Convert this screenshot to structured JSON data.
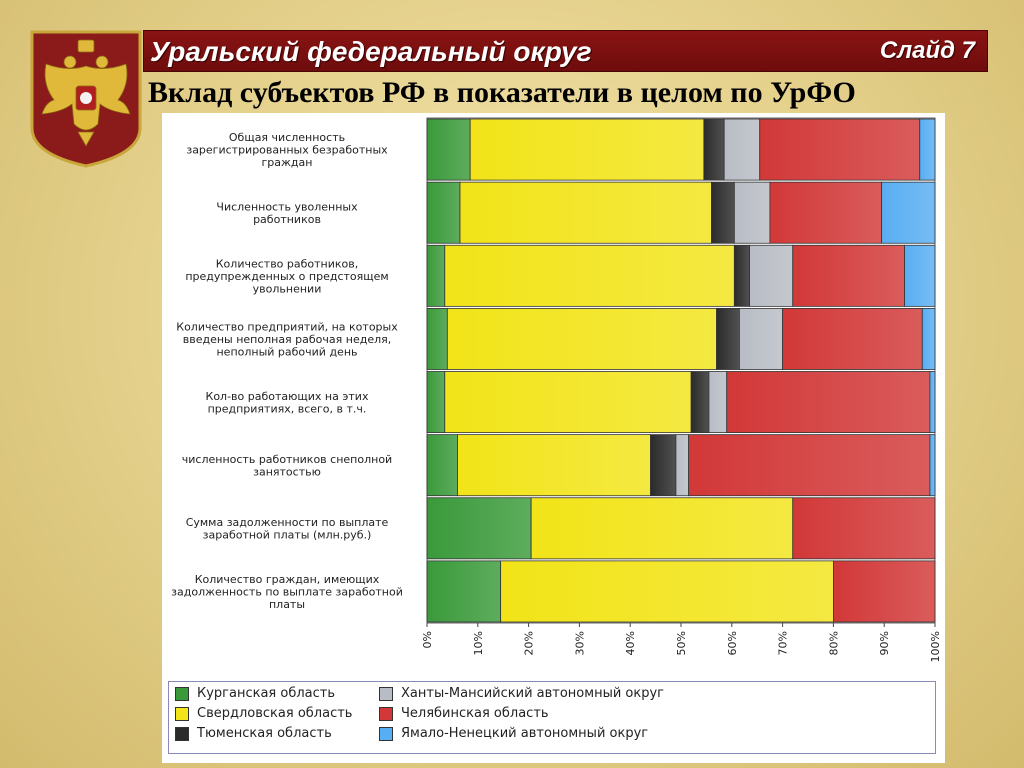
{
  "header": {
    "title": "Уральский федеральный округ",
    "slide_label": "Слайд 7",
    "subtitle": "Вклад субъектов РФ в показатели в целом по УрФО"
  },
  "emblem": {
    "icon": "double-headed-eagle-icon",
    "field_color": "#8b1a1a",
    "eagle_color": "#e0b83a"
  },
  "colors": {
    "header_bar": "#7a1010",
    "series": [
      "#3a9a3a",
      "#f2e418",
      "#2b2b2b",
      "#b8bcc4",
      "#d23838",
      "#58aef2"
    ]
  },
  "chart_data": {
    "type": "bar",
    "orientation": "horizontal",
    "stacked": "percent",
    "categories": [
      "Общая численность зарегистрированных безработных граждан",
      "Численность уволенных работников",
      "Количество работников, предупрежденных о предстоящем увольнении",
      "Количество предприятий, на которых введены неполная рабочая неделя, неполный рабочий день",
      "Кол-во работающих на этих предприятиях, всего, в т.ч.",
      "численность работников снеполной занятостью",
      "Сумма задолженности по выплате заработной платы (млн.руб.)",
      "Количество граждан, имеющих задолженность по выплате заработной платы"
    ],
    "category_lines": [
      [
        "Общая численность",
        "зарегистрированных безработных",
        "граждан"
      ],
      [
        "Численность уволенных",
        "работников"
      ],
      [
        "Количество работников,",
        "предупрежденных о предстоящем",
        "увольнении"
      ],
      [
        "Количество предприятий, на которых",
        "введены неполная рабочая неделя,",
        "неполный рабочий день"
      ],
      [
        "Кол-во работающих на этих",
        "предприятиях, всего, в т.ч."
      ],
      [
        "численность работников снеполной",
        "занятостью"
      ],
      [
        "Сумма задолженности по выплате",
        "заработной платы (млн.руб.)"
      ],
      [
        "Количество граждан, имеющих",
        "задолженность по выплате заработной",
        "платы"
      ]
    ],
    "series": [
      {
        "name": "Курганская область",
        "color": "#3a9a3a",
        "values": [
          8.5,
          6.5,
          3.5,
          4,
          3.5,
          6,
          20.5,
          14.5
        ]
      },
      {
        "name": "Свердловская область",
        "color": "#f2e418",
        "values": [
          46,
          49.5,
          57,
          53,
          48.5,
          38,
          51.5,
          65.5
        ]
      },
      {
        "name": "Тюменская область",
        "color": "#2b2b2b",
        "values": [
          4,
          4.5,
          3,
          4.5,
          3.5,
          5,
          0,
          0
        ]
      },
      {
        "name": "Ханты-Мансийский автономный округ",
        "color": "#b8bcc4",
        "values": [
          7,
          7,
          8.5,
          8.5,
          3.5,
          2.5,
          0,
          0
        ]
      },
      {
        "name": "Челябинская область",
        "color": "#d23838",
        "values": [
          31.5,
          22,
          22,
          27.5,
          40,
          47.5,
          28,
          20
        ]
      },
      {
        "name": "Ямало-Ненецкий автономный округ",
        "color": "#58aef2",
        "values": [
          3,
          10.5,
          6,
          2.5,
          1,
          1,
          0,
          0
        ]
      }
    ],
    "x_ticks": [
      "0%",
      "10%",
      "20%",
      "30%",
      "40%",
      "50%",
      "60%",
      "70%",
      "80%",
      "90%",
      "100%"
    ],
    "xlim": [
      0,
      100
    ],
    "grid": false,
    "legend_position": "bottom"
  }
}
